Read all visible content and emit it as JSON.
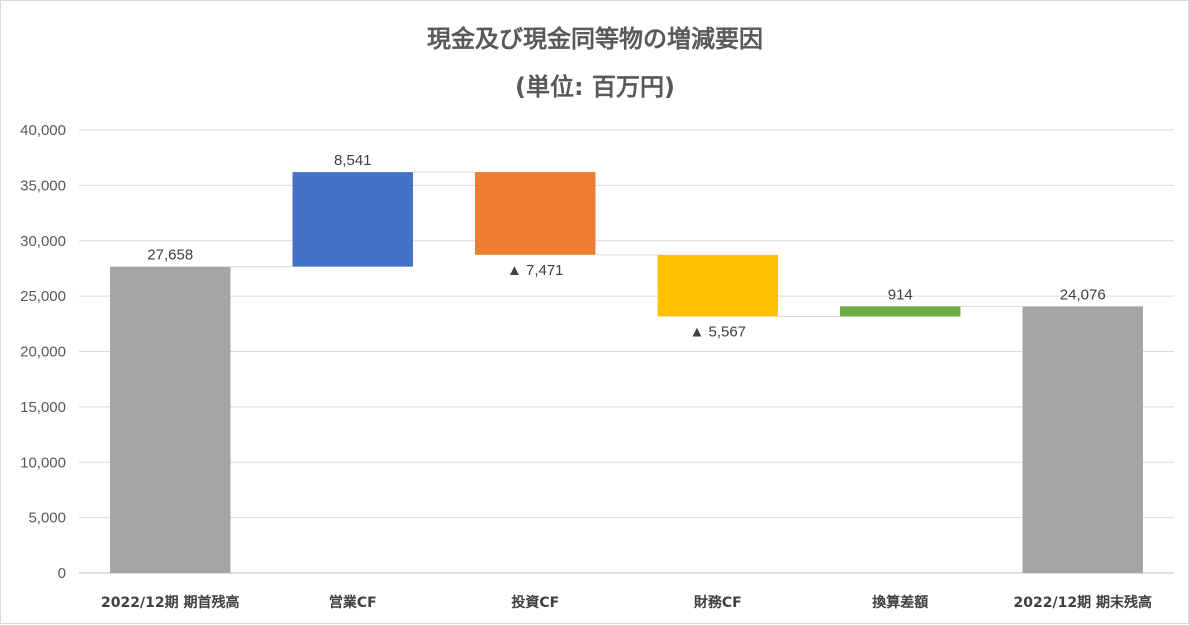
{
  "chart_data": {
    "type": "waterfall",
    "title_lines": [
      "現金及び現金同等物の増減要因",
      "(単位: 百万円)"
    ],
    "ylim": [
      0,
      40000
    ],
    "yticks": [
      0,
      5000,
      10000,
      15000,
      20000,
      25000,
      30000,
      35000,
      40000
    ],
    "ytick_labels": [
      "0",
      "5,000",
      "10,000",
      "15,000",
      "20,000",
      "25,000",
      "30,000",
      "35,000",
      "40,000"
    ],
    "grid": true,
    "categories": [
      "2022/12期 期首残高",
      "営業CF",
      "投資CF",
      "財務CF",
      "換算差額",
      "2022/12期 期末残高"
    ],
    "bars": [
      {
        "category": "2022/12期 期首残高",
        "kind": "total",
        "start": 0,
        "end": 27658,
        "label": "27,658",
        "color": "#a5a5a5"
      },
      {
        "category": "営業CF",
        "kind": "increase",
        "start": 27658,
        "end": 36199,
        "label": "8,541",
        "color": "#4472c4"
      },
      {
        "category": "投資CF",
        "kind": "decrease",
        "start": 36199,
        "end": 28728,
        "label": "▲ 7,471",
        "color": "#ed7d31"
      },
      {
        "category": "財務CF",
        "kind": "decrease",
        "start": 28728,
        "end": 23161,
        "label": "▲ 5,567",
        "color": "#ffc000"
      },
      {
        "category": "換算差額",
        "kind": "increase",
        "start": 23161,
        "end": 24075,
        "label": "914",
        "color": "#70ad47"
      },
      {
        "category": "2022/12期 期末残高",
        "kind": "total",
        "start": 0,
        "end": 24076,
        "label": "24,076",
        "color": "#a5a5a5"
      }
    ]
  }
}
